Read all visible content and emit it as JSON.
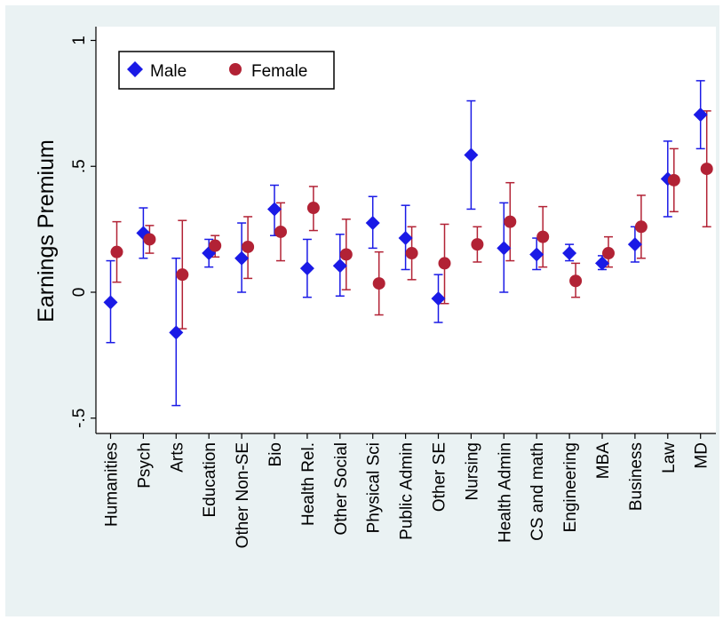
{
  "chart_data": {
    "type": "scatter",
    "title": "",
    "xlabel": "",
    "ylabel": "Earnings Premium",
    "ylim": [
      -0.5,
      1
    ],
    "yticks": [
      {
        "value": -0.5,
        "label": "-.5"
      },
      {
        "value": 0,
        "label": "0"
      },
      {
        "value": 0.5,
        "label": ".5"
      },
      {
        "value": 1,
        "label": "1"
      }
    ],
    "grid": false,
    "legend_position": "top-left",
    "categories": [
      "Humanities",
      "Psych",
      "Arts",
      "Education",
      "Other Non-SE",
      "Bio",
      "Health Rel.",
      "Other Social",
      "Physical Sci",
      "Public Admin",
      "Other SE",
      "Nursing",
      "Health Admin",
      "CS and math",
      "Engineering",
      "MBA",
      "Business",
      "Law",
      "MD"
    ],
    "series": [
      {
        "name": "Male",
        "marker": "diamond",
        "color": "#1a1ae6",
        "values": [
          -0.04,
          0.235,
          -0.16,
          0.155,
          0.135,
          0.33,
          0.095,
          0.105,
          0.275,
          0.215,
          -0.025,
          0.545,
          0.175,
          0.15,
          0.155,
          0.115,
          0.19,
          0.45,
          0.705
        ],
        "ci_low": [
          -0.2,
          0.135,
          -0.45,
          0.1,
          0.0,
          0.225,
          -0.02,
          -0.015,
          0.175,
          0.09,
          -0.12,
          0.33,
          0.0,
          0.09,
          0.125,
          0.09,
          0.12,
          0.3,
          0.57
        ],
        "ci_high": [
          0.125,
          0.335,
          0.135,
          0.21,
          0.275,
          0.425,
          0.21,
          0.23,
          0.38,
          0.345,
          0.07,
          0.76,
          0.355,
          0.215,
          0.19,
          0.145,
          0.26,
          0.6,
          0.84
        ]
      },
      {
        "name": "Female",
        "marker": "circle",
        "color": "#b22235",
        "values": [
          0.16,
          0.21,
          0.07,
          0.185,
          0.18,
          0.24,
          0.335,
          0.15,
          0.035,
          0.155,
          0.115,
          0.19,
          0.28,
          0.22,
          0.045,
          0.155,
          0.26,
          0.445,
          0.49
        ],
        "ci_low": [
          0.04,
          0.155,
          -0.145,
          0.14,
          0.055,
          0.125,
          0.245,
          0.01,
          -0.09,
          0.05,
          -0.045,
          0.12,
          0.125,
          0.1,
          -0.02,
          0.1,
          0.135,
          0.32,
          0.26
        ],
        "ci_high": [
          0.28,
          0.265,
          0.285,
          0.225,
          0.3,
          0.355,
          0.42,
          0.29,
          0.16,
          0.26,
          0.27,
          0.26,
          0.435,
          0.34,
          0.115,
          0.22,
          0.385,
          0.57,
          0.72
        ]
      }
    ]
  }
}
